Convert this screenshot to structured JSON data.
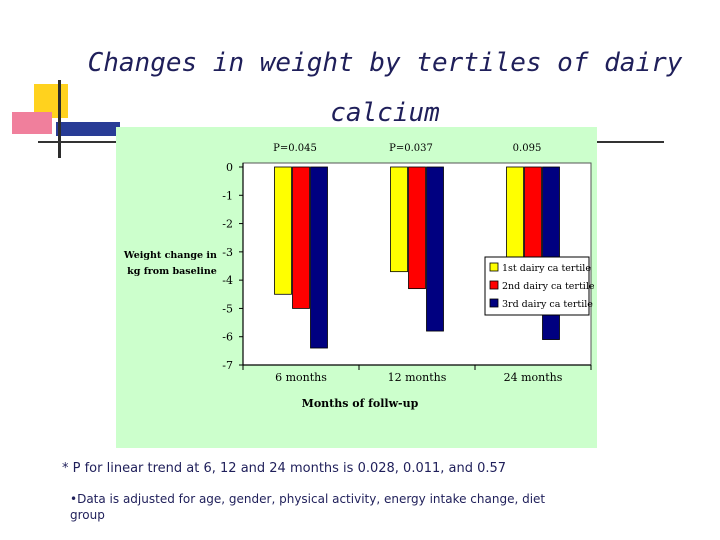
{
  "slide": {
    "title": "Changes in weight by tertiles of dairy calcium",
    "footnote_main": "* P for linear trend at 6, 12 and 24 months is 0.028, 0.011, and 0.57",
    "footnote_bullet": "•Data is adjusted for age, gender, physical activity, energy intake change, diet group"
  },
  "chart_data": {
    "type": "bar",
    "title": "",
    "xlabel": "Months of follw-up",
    "ylabel": "Weight change in kg from baseline",
    "categories": [
      "6 months",
      "12 months",
      "24 months"
    ],
    "series": [
      {
        "name": "1st dairy ca tertile",
        "values": [
          -4.5,
          -3.7,
          -3.8
        ],
        "color": "#ffff00"
      },
      {
        "name": "2nd dairy ca tertile",
        "values": [
          -5.0,
          -4.3,
          -3.5
        ],
        "color": "#ff0000"
      },
      {
        "name": "3rd dairy ca tertile",
        "values": [
          -6.4,
          -5.8,
          -6.1
        ],
        "color": "#000080"
      }
    ],
    "ylim": [
      -7,
      0
    ],
    "yticks": [
      "0",
      "-1",
      "-2",
      "-3",
      "-4",
      "-5",
      "-6",
      "-7"
    ],
    "p_values": [
      "P=0.045",
      "P=0.037",
      "0.095"
    ],
    "grid": false,
    "legend_position": "right"
  }
}
